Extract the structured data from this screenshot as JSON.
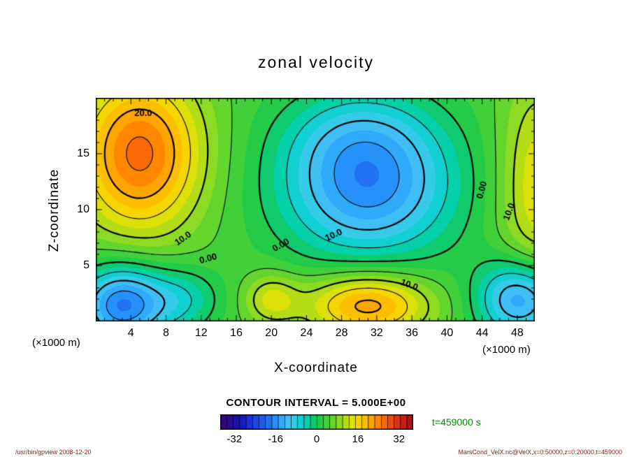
{
  "page": {
    "time_label": "t=459000 s",
    "footer_left": "/usr/bin/gpview  2008-12-20",
    "footer_right": "MarsCond_VelX.nc@VelX,x=0:50000,z=0:20000,t=459000"
  },
  "chart_data": {
    "type": "heatmap",
    "subtype": "filled-contour",
    "title": "zonal velocity",
    "xlabel": "X-coordinate",
    "ylabel": "Z-coordinate",
    "x_unit": "(×1000 m)",
    "y_unit": "(×1000 m)",
    "x_range": [
      0,
      50
    ],
    "z_range": [
      0,
      20
    ],
    "x_ticks": [
      4,
      8,
      12,
      16,
      20,
      24,
      28,
      32,
      36,
      40,
      44,
      48
    ],
    "z_ticks": [
      5,
      10,
      15
    ],
    "contour_interval": 5,
    "contour_interval_label": "CONTOUR INTERVAL = 5.000E+00",
    "levels": [
      -20,
      -15,
      -10,
      -5,
      0,
      5,
      10,
      15,
      20,
      25
    ],
    "band_width": 2.5,
    "colorbar": {
      "min": -37.5,
      "max": 37.5,
      "ticks": [
        -32,
        -16,
        0,
        16,
        32
      ]
    },
    "palette": [
      [
        -37.5,
        "#38006e"
      ],
      [
        -30,
        "#1414b4"
      ],
      [
        -25,
        "#1e3cdc"
      ],
      [
        -20,
        "#1e64f0"
      ],
      [
        -15,
        "#28a0ff"
      ],
      [
        -10,
        "#46c8f0"
      ],
      [
        -5,
        "#00d2c8"
      ],
      [
        0,
        "#14c850"
      ],
      [
        5,
        "#50d232"
      ],
      [
        10,
        "#a0dc1e"
      ],
      [
        15,
        "#f0e000"
      ],
      [
        20,
        "#ffb400"
      ],
      [
        25,
        "#ff7800"
      ],
      [
        30,
        "#e63c14"
      ],
      [
        35,
        "#be1414"
      ],
      [
        37.5,
        "#a01010"
      ]
    ],
    "field": {
      "base": 4,
      "blobs": [
        {
          "x": 5,
          "z": 15,
          "sx": 5,
          "sz": 5,
          "amp": 22
        },
        {
          "x": 31,
          "z": 12,
          "sx": 7,
          "sz": 4.5,
          "amp": -20
        },
        {
          "x": 30,
          "z": 17,
          "sx": 6,
          "sz": 3,
          "amp": -6
        },
        {
          "x": 3,
          "z": 1.5,
          "sx": 3.5,
          "sz": 2.5,
          "amp": -22
        },
        {
          "x": 48.5,
          "z": 2,
          "sx": 3.5,
          "sz": 2.5,
          "amp": -20
        },
        {
          "x": 31,
          "z": 1.5,
          "sx": 5,
          "sz": 2,
          "amp": 18
        },
        {
          "x": 50.5,
          "z": 12,
          "sx": 3.2,
          "sz": 7,
          "amp": 11
        },
        {
          "x": 20,
          "z": 2,
          "sx": 2.2,
          "sz": 1.6,
          "amp": 9
        },
        {
          "x": 10,
          "z": 2,
          "sx": 3,
          "sz": 2,
          "amp": -8
        }
      ]
    },
    "contour_labels": [
      {
        "text": "20.0",
        "x": 5.4,
        "z": 18.6,
        "rot": 0
      },
      {
        "text": "10.0",
        "x": 9.95,
        "z": 7.4,
        "rot": -35
      },
      {
        "text": "0.00",
        "x": 12.8,
        "z": 5.6,
        "rot": -15
      },
      {
        "text": "0.00",
        "x": 21.1,
        "z": 6.8,
        "rot": -30
      },
      {
        "text": "10.0",
        "x": 27.1,
        "z": 7.7,
        "rot": -25
      },
      {
        "text": "0.00",
        "x": 44.0,
        "z": 11.75,
        "rot": -75
      },
      {
        "text": "10.0",
        "x": 47.1,
        "z": 9.8,
        "rot": -70
      },
      {
        "text": "10.0",
        "x": 35.7,
        "z": 3.25,
        "rot": 20
      }
    ]
  }
}
